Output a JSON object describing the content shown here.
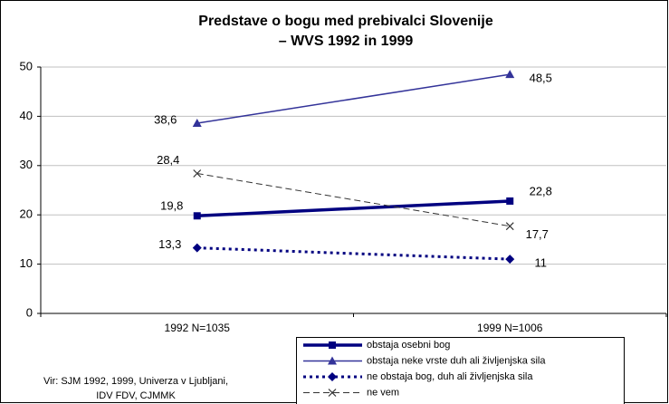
{
  "chart_data": {
    "type": "line",
    "title": [
      "Predstave o bogu med prebivalci Slovenije",
      "– WVS 1992 in 1999"
    ],
    "categories": [
      "1992 N=1035",
      "1999 N=1006"
    ],
    "ylim": [
      0,
      50
    ],
    "yticks": [
      0,
      10,
      20,
      30,
      40,
      50
    ],
    "grid": true,
    "legend": "bottom-right",
    "source": [
      "Vir: SJM 1992, 1999, Univerza v Ljubljani,",
      "IDV FDV, CJMMK"
    ],
    "series": [
      {
        "name": "obstaja osebni bog",
        "color": "#000080",
        "values": [
          19.8,
          22.8
        ],
        "value_labels": [
          "19,8",
          "22,8"
        ]
      },
      {
        "name": "obstaja neke vrste duh ali življenjska sila",
        "color": "#333399",
        "values": [
          38.6,
          48.5
        ],
        "value_labels": [
          "38,6",
          "48,5"
        ]
      },
      {
        "name": "ne obstaja bog, duh ali življenjska sila",
        "color": "#000080",
        "values": [
          13.3,
          11
        ],
        "value_labels": [
          "13,3",
          "11"
        ]
      },
      {
        "name": "ne vem",
        "color": "#333333",
        "values": [
          28.4,
          17.7
        ],
        "value_labels": [
          "28,4",
          "17,7"
        ]
      }
    ]
  }
}
